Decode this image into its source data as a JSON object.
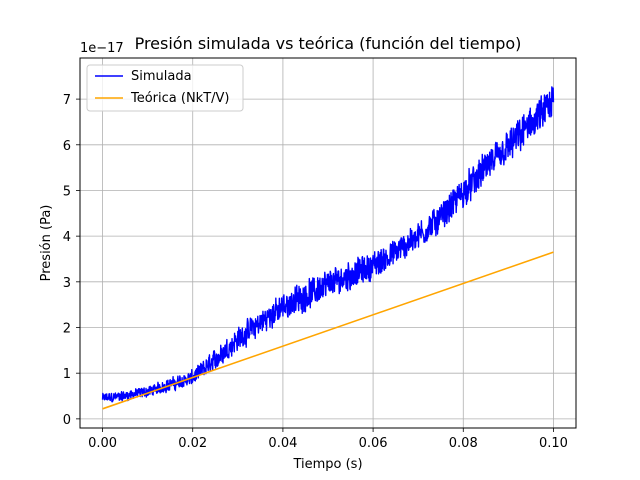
{
  "chart_data": {
    "type": "line",
    "title": "Presión simulada vs teórica (función del tiempo)",
    "xlabel": "Tiempo (s)",
    "ylabel": "Presión (Pa)",
    "offset_text": "1e−17",
    "xlim": [
      -0.005,
      0.105
    ],
    "ylim": [
      -0.2,
      7.9
    ],
    "xticks": [
      0.0,
      0.02,
      0.04,
      0.06,
      0.08,
      0.1
    ],
    "xtick_labels": [
      "0.00",
      "0.02",
      "0.04",
      "0.06",
      "0.08",
      "0.10"
    ],
    "yticks": [
      0,
      1,
      2,
      3,
      4,
      5,
      6,
      7
    ],
    "ytick_labels": [
      "0",
      "1",
      "2",
      "3",
      "4",
      "5",
      "6",
      "7"
    ],
    "grid": true,
    "legend": "upper-left",
    "series": [
      {
        "name": "Simulada",
        "color": "#0000ff",
        "x": [
          0.0,
          0.005,
          0.01,
          0.015,
          0.02,
          0.025,
          0.03,
          0.035,
          0.04,
          0.045,
          0.05,
          0.055,
          0.06,
          0.065,
          0.07,
          0.075,
          0.08,
          0.085,
          0.09,
          0.095,
          0.1
        ],
        "y": [
          0.45,
          0.5,
          0.6,
          0.75,
          0.9,
          1.3,
          1.75,
          2.1,
          2.45,
          2.7,
          2.95,
          3.15,
          3.35,
          3.65,
          4.0,
          4.4,
          4.95,
          5.5,
          5.95,
          6.45,
          6.9
        ],
        "noise": [
          0.12,
          0.12,
          0.13,
          0.15,
          0.18,
          0.25,
          0.28,
          0.3,
          0.32,
          0.34,
          0.35,
          0.34,
          0.32,
          0.32,
          0.33,
          0.35,
          0.36,
          0.38,
          0.4,
          0.42,
          0.45
        ]
      },
      {
        "name": "Teórica (NkT/V)",
        "color": "#ffa500",
        "x": [
          0.0,
          0.1
        ],
        "y": [
          0.22,
          3.65
        ]
      }
    ]
  }
}
